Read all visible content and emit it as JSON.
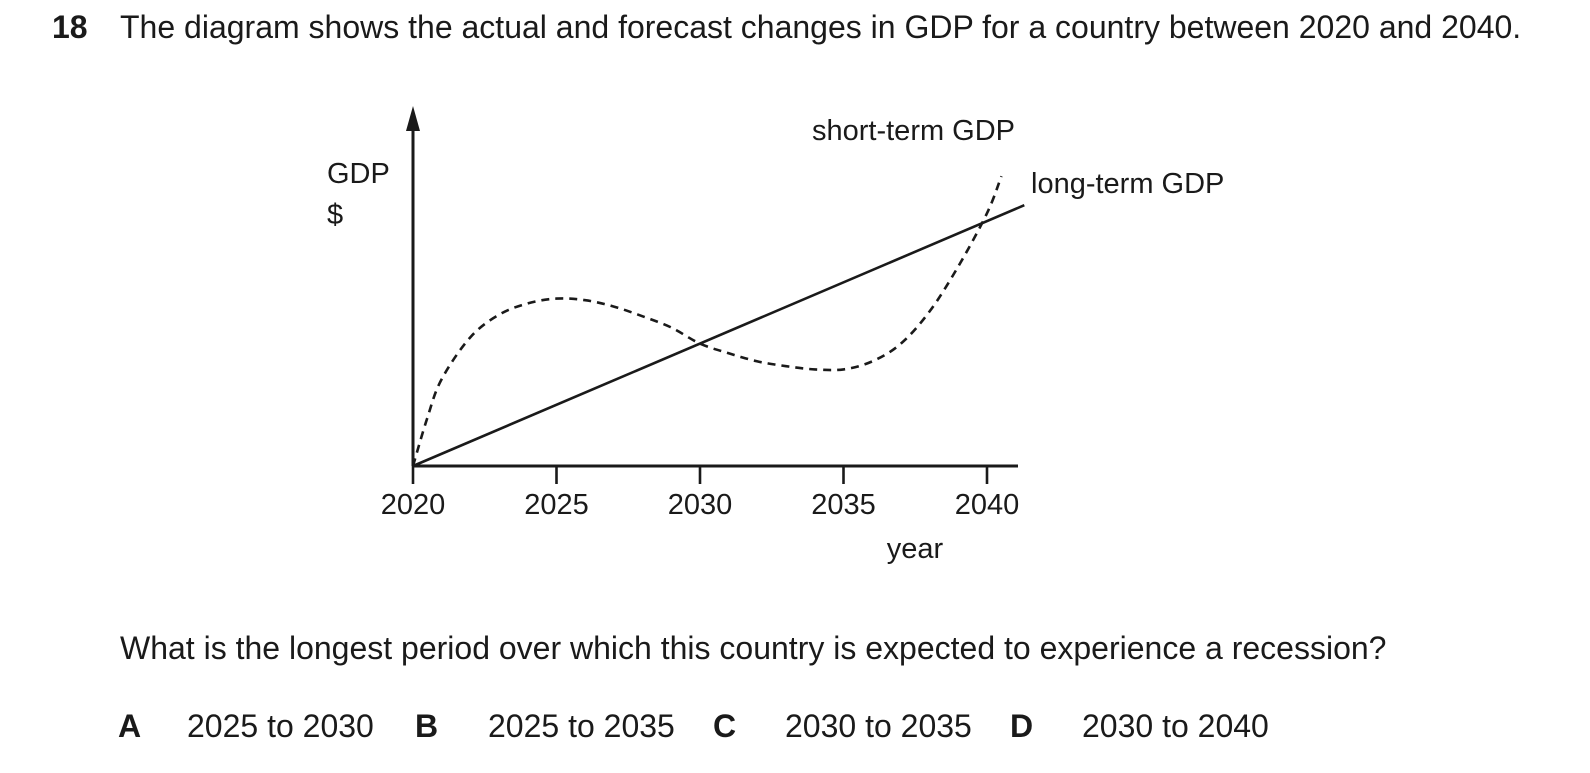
{
  "question": {
    "number": "18",
    "stem": "The diagram shows the actual and forecast changes in GDP for a country between 2020 and 2040.",
    "prompt": "What is the longest period over which this country is expected to experience a recession?",
    "options": [
      {
        "letter": "A",
        "text": "2025 to 2030"
      },
      {
        "letter": "B",
        "text": "2025 to 2035"
      },
      {
        "letter": "C",
        "text": "2030 to 2035"
      },
      {
        "letter": "D",
        "text": "2030 to 2040"
      }
    ]
  },
  "chart_data": {
    "type": "line",
    "title": "",
    "xlabel": "year",
    "ylabel_line1": "GDP",
    "ylabel_line2": "$",
    "x_ticks": [
      2020,
      2025,
      2030,
      2035,
      2040
    ],
    "xlim": [
      2020,
      2040.8
    ],
    "ylim": [
      0,
      10
    ],
    "grid": false,
    "series": [
      {
        "name": "short-term GDP",
        "style": "dashed",
        "x": [
          2020,
          2020.5,
          2021,
          2022,
          2023,
          2024,
          2025,
          2026,
          2027,
          2028,
          2029,
          2030,
          2031,
          2032,
          2033,
          2034,
          2035,
          2036,
          2037,
          2038,
          2039,
          2040,
          2040.5
        ],
        "y": [
          0,
          1.5,
          2.7,
          4.0,
          4.7,
          5.05,
          5.2,
          5.15,
          4.95,
          4.65,
          4.3,
          3.8,
          3.5,
          3.25,
          3.1,
          3.0,
          3.0,
          3.25,
          3.8,
          4.8,
          6.2,
          7.85,
          9.0
        ]
      },
      {
        "name": "long-term GDP",
        "style": "solid",
        "x": [
          2020,
          2041.3
        ],
        "y": [
          0,
          8.1
        ]
      }
    ]
  }
}
